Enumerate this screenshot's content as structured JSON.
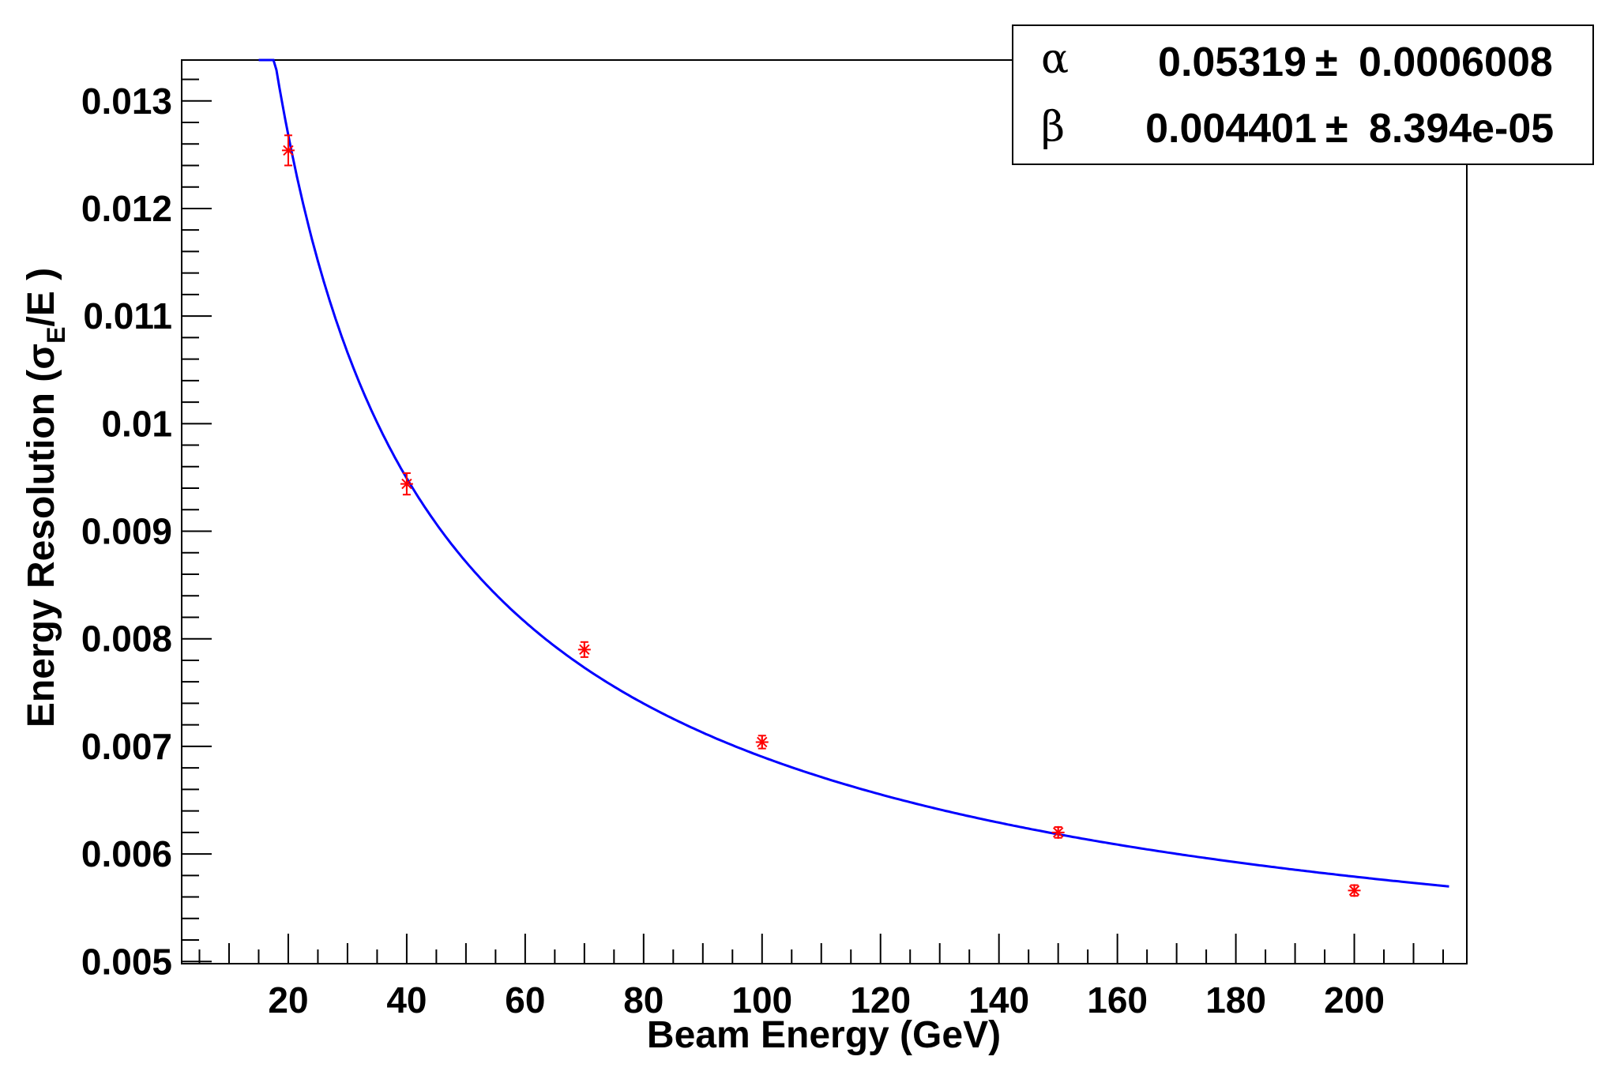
{
  "chart_data": {
    "type": "scatter",
    "xlabel": "Beam Energy (GeV)",
    "ylabel": {
      "prefix": "Energy Resolution (",
      "symbol": "σ",
      "subscript": "E",
      "suffix": "/E )"
    },
    "xlim": [
      2,
      219
    ],
    "ylim": [
      0.00498,
      0.01338
    ],
    "x_ticks": [
      20,
      40,
      60,
      80,
      100,
      120,
      140,
      160,
      180,
      200
    ],
    "x_tick_labels": [
      "20",
      "40",
      "60",
      "80",
      "100",
      "120",
      "140",
      "160",
      "180",
      "200"
    ],
    "y_ticks": [
      0.005,
      0.006,
      0.007,
      0.008,
      0.009,
      0.01,
      0.011,
      0.012,
      0.013
    ],
    "y_tick_labels": [
      "0.005",
      "0.006",
      "0.007",
      "0.008",
      "0.009",
      "0.01",
      "0.011",
      "0.012",
      "0.013"
    ],
    "grid": false,
    "series": [
      {
        "kind": "points",
        "color": "#ff0000",
        "points": [
          {
            "x": 20,
            "y": 0.01254,
            "err": 0.00014
          },
          {
            "x": 40,
            "y": 0.00944,
            "err": 0.0001
          },
          {
            "x": 70,
            "y": 0.0079,
            "err": 7e-05
          },
          {
            "x": 100,
            "y": 0.00704,
            "err": 6e-05
          },
          {
            "x": 150,
            "y": 0.0062,
            "err": 5e-05
          },
          {
            "x": 200,
            "y": 0.00566,
            "err": 5e-05
          }
        ]
      },
      {
        "kind": "fit",
        "color": "#0000ff",
        "model": "sqrt(alpha^2/E + beta^2)",
        "alpha": 0.05319,
        "beta": 0.004401,
        "x_range": [
          15,
          216
        ]
      }
    ],
    "stats_box": {
      "position": "top-right",
      "rows": [
        {
          "symbol": "α",
          "value": "0.05319",
          "pm": "±",
          "error": "0.0006008"
        },
        {
          "symbol": "β",
          "value": "0.004401",
          "pm": "±",
          "error": "8.394e-05"
        }
      ]
    }
  }
}
